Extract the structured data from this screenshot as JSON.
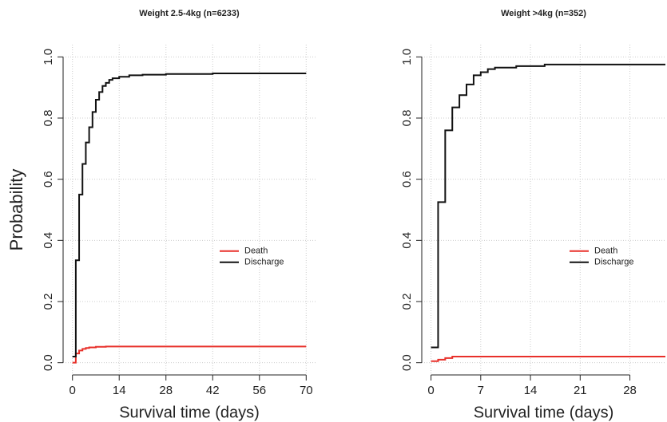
{
  "chart_data": [
    {
      "type": "line",
      "step": true,
      "title": "Weight 2.5-4kg (n=6233)",
      "xlabel": "Survival time (days)",
      "ylabel": "Probability",
      "xlim": [
        -2.8,
        72.8
      ],
      "xticks": [
        0,
        14,
        28,
        42,
        56,
        70
      ],
      "ylim": [
        -0.04,
        1.04
      ],
      "yticks": [
        {
          "value": 0,
          "label": "0.0"
        },
        {
          "value": 0.2,
          "label": "0.2"
        },
        {
          "value": 0.4,
          "label": "0.4"
        },
        {
          "value": 0.6,
          "label": "0.6"
        },
        {
          "value": 0.8,
          "label": "0.8"
        },
        {
          "value": 1,
          "label": "1.0"
        }
      ],
      "grid": true,
      "legend": "right",
      "series": [
        {
          "name": "Death",
          "color": "#e8302a",
          "x": [
            0,
            1,
            2,
            3,
            4,
            5,
            7,
            10,
            70
          ],
          "values": [
            0,
            0.03,
            0.04,
            0.045,
            0.048,
            0.05,
            0.052,
            0.053,
            0.053
          ]
        },
        {
          "name": "Discharge",
          "color": "#111111",
          "x": [
            0,
            1,
            2,
            3,
            4,
            5,
            6,
            7,
            8,
            9,
            10,
            11,
            12,
            14,
            17,
            21,
            28,
            42,
            70
          ],
          "values": [
            0.02,
            0.335,
            0.55,
            0.65,
            0.72,
            0.77,
            0.82,
            0.86,
            0.885,
            0.905,
            0.915,
            0.925,
            0.93,
            0.935,
            0.94,
            0.942,
            0.944,
            0.946,
            0.946
          ]
        }
      ]
    },
    {
      "type": "line",
      "step": true,
      "title": "Weight >4kg (n=352)",
      "xlabel": "Survival time (days)",
      "xlim": [
        -1.3,
        33
      ],
      "xticks": [
        0,
        7,
        14,
        21,
        28
      ],
      "ylim": [
        -0.04,
        1.04
      ],
      "yticks": [
        {
          "value": 0,
          "label": "0.0"
        },
        {
          "value": 0.2,
          "label": "0.2"
        },
        {
          "value": 0.4,
          "label": "0.4"
        },
        {
          "value": 0.6,
          "label": "0.6"
        },
        {
          "value": 0.8,
          "label": "0.8"
        },
        {
          "value": 1,
          "label": "1.0"
        }
      ],
      "grid": true,
      "legend": "right",
      "series": [
        {
          "name": "Death",
          "color": "#e8302a",
          "x": [
            0,
            1,
            2,
            3,
            33
          ],
          "values": [
            0.005,
            0.01,
            0.015,
            0.02,
            0.02
          ]
        },
        {
          "name": "Discharge",
          "color": "#111111",
          "x": [
            0,
            1,
            2,
            3,
            4,
            5,
            6,
            7,
            8,
            9,
            12,
            16,
            33
          ],
          "values": [
            0.05,
            0.525,
            0.76,
            0.835,
            0.875,
            0.91,
            0.94,
            0.95,
            0.96,
            0.965,
            0.97,
            0.975,
            0.975
          ]
        }
      ]
    }
  ]
}
